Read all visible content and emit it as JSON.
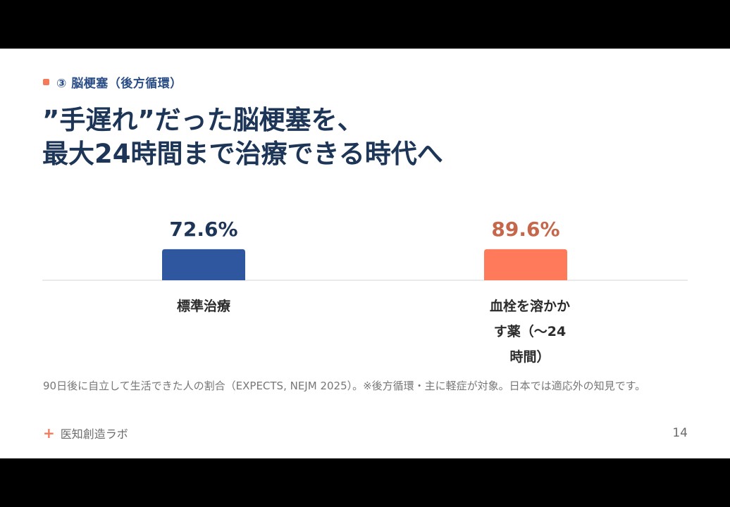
{
  "section": {
    "label": "③ 脳梗塞（後方循環）"
  },
  "headline": {
    "line1": "”手遅れ”だった脳梗塞を、",
    "line2": "最大24時間まで治療できる時代へ"
  },
  "chart_data": {
    "type": "bar",
    "categories": [
      "標準治療",
      "血栓を溶かす薬（〜24時間）"
    ],
    "category_label_lines": [
      [
        "標準治療"
      ],
      [
        "血栓を溶かか",
        "す薬（〜24",
        "時間）"
      ]
    ],
    "values": [
      72.6,
      89.6
    ],
    "value_labels": [
      "72.6%",
      "89.6%"
    ],
    "colors": [
      "#2e57a0",
      "#ff7a5a"
    ],
    "label_colors": [
      "#1d3556",
      "#c6674c"
    ],
    "unit": "%",
    "grid": false,
    "legend": "none"
  },
  "footnote": "90日後に自立して生活できた人の割合（EXPECTS, NEJM 2025）。※後方循環・主に軽症が対象。日本では適応外の知見です。",
  "brand": {
    "icon": "plus-icon",
    "name": "医知創造ラボ"
  },
  "page_number": "14"
}
